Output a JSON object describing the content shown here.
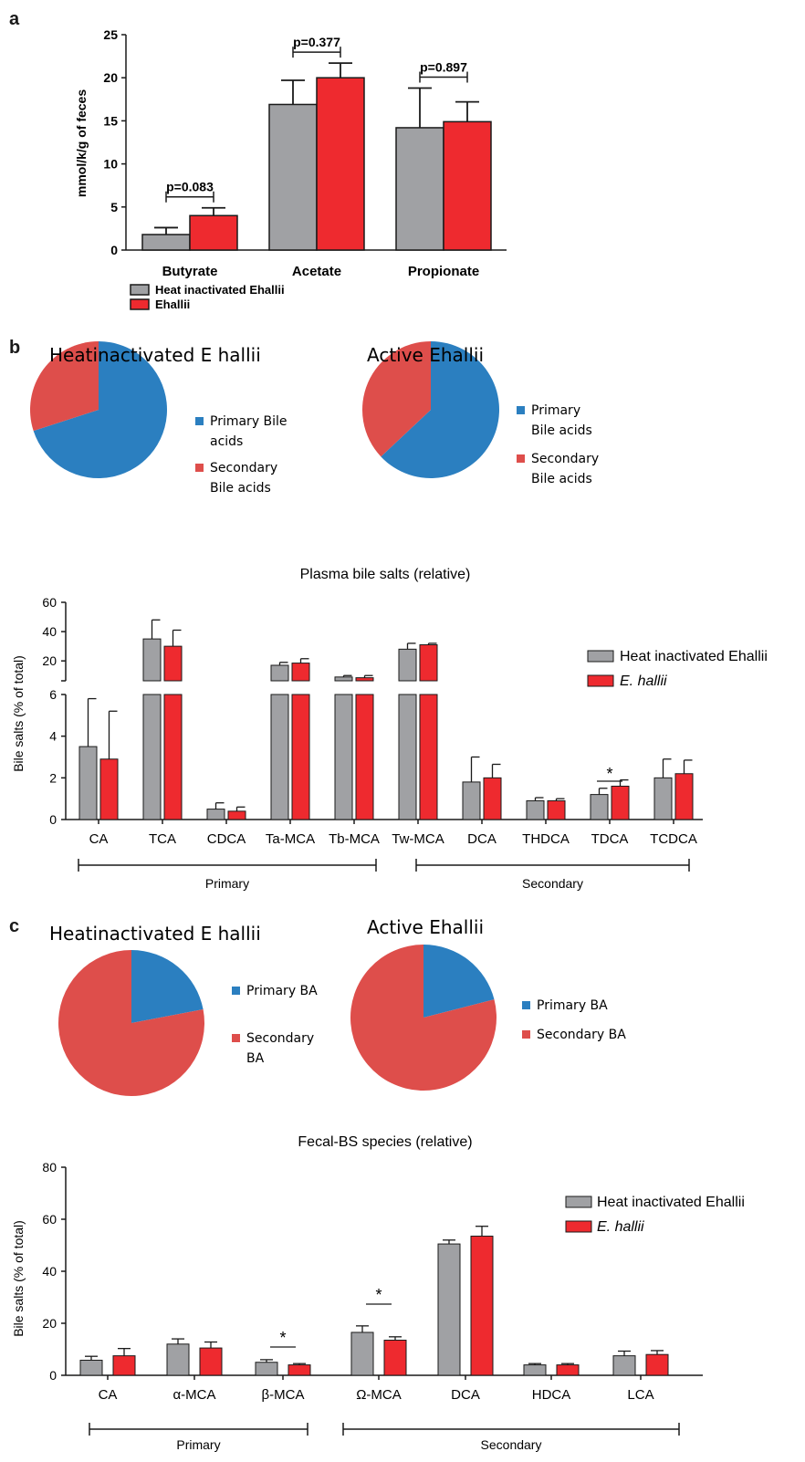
{
  "panels": {
    "a": "a",
    "b": "b",
    "c": "c"
  },
  "colors": {
    "gray": "#a0a1a4",
    "red": "#ee2a2f",
    "blue": "#2b7fc0",
    "pie_red": "#de4e4b",
    "axis": "#1a1a1a"
  },
  "chart_data": [
    {
      "id": "scfa",
      "type": "bar",
      "categories": [
        "Butyrate",
        "Acetate",
        "Propionate"
      ],
      "ylabel": "mmol/k/g of feces",
      "ylim": [
        0,
        25
      ],
      "yticks": [
        0,
        5,
        10,
        15,
        20,
        25
      ],
      "series": [
        {
          "name": "Heat inactivated Ehallii",
          "values": [
            1.8,
            16.9,
            14.2
          ],
          "errors": [
            0.8,
            2.8,
            4.6
          ]
        },
        {
          "name": "Ehallii",
          "values": [
            4.0,
            20.0,
            14.9
          ],
          "errors": [
            0.9,
            1.7,
            2.3
          ]
        }
      ],
      "annotations": [
        "p=0.083",
        "p=0.377",
        "p=0.897"
      ]
    },
    {
      "id": "plasma-pie-heat",
      "type": "pie",
      "title": "Heatinactivated E hallii",
      "labels": [
        [
          "Primary Bile",
          "acids"
        ],
        [
          "Secondary",
          "Bile acids"
        ]
      ],
      "values": [
        70,
        30
      ]
    },
    {
      "id": "plasma-pie-active",
      "type": "pie",
      "title": "Active Ehallii",
      "labels": [
        [
          "Primary",
          "Bile acids"
        ],
        [
          "Secondary",
          "Bile acids"
        ]
      ],
      "values": [
        63,
        37
      ]
    },
    {
      "id": "plasma-bars",
      "type": "bar",
      "title": "Plasma bile salts (relative)",
      "ylabel": "Bile salts (% of total)",
      "categories": [
        "CA",
        "TCA",
        "CDCA",
        "Ta-MCA",
        "Tb-MCA",
        "Tw-MCA",
        "DCA",
        "THDCA",
        "TDCA",
        "TCDCA"
      ],
      "yticks_lower": [
        0,
        2,
        4,
        6
      ],
      "yticks_upper": [
        20,
        40,
        60
      ],
      "series": [
        {
          "name": "Heat inactivated Ehallii",
          "values": [
            3.5,
            35,
            0.5,
            17,
            9,
            28,
            1.8,
            0.9,
            1.2,
            2.0
          ],
          "errors": [
            2.3,
            13,
            0.3,
            2,
            1,
            4,
            1.2,
            0.15,
            0.3,
            0.9
          ]
        },
        {
          "name": "E. hallii",
          "values": [
            2.9,
            30,
            0.4,
            18.5,
            8.5,
            31,
            2.0,
            0.9,
            1.6,
            2.2
          ],
          "errors": [
            2.3,
            11,
            0.2,
            3,
            1.5,
            1,
            0.65,
            0.1,
            0.3,
            0.65
          ]
        }
      ],
      "group_labels": [
        "Primary",
        "Secondary"
      ],
      "significance": [
        "*"
      ]
    },
    {
      "id": "fecal-pie-heat",
      "type": "pie",
      "title": "Heatinactivated E hallii",
      "labels": [
        [
          "Primary BA"
        ],
        [
          "Secondary",
          "BA"
        ]
      ],
      "values": [
        22,
        78
      ]
    },
    {
      "id": "fecal-pie-active",
      "type": "pie",
      "title": "Active Ehallii",
      "labels": [
        [
          "Primary BA"
        ],
        [
          "Secondary BA"
        ]
      ],
      "values": [
        21,
        79
      ]
    },
    {
      "id": "fecal-bars",
      "type": "bar",
      "title": "Fecal-BS species (relative)",
      "ylabel": "Bile salts (% of total)",
      "ylim": [
        0,
        80
      ],
      "yticks": [
        0,
        20,
        40,
        60,
        80
      ],
      "categories": [
        "CA",
        "α-MCA",
        "β-MCA",
        "Ω-MCA",
        "DCA",
        "HDCA",
        "LCA"
      ],
      "series": [
        {
          "name": "Heat inactivated Ehallii",
          "values": [
            5.8,
            12,
            5,
            16.5,
            50.5,
            4,
            7.5
          ],
          "errors": [
            1.5,
            2,
            1,
            2.5,
            1.5,
            0.5,
            1.8
          ]
        },
        {
          "name": "E. hallii",
          "values": [
            7.5,
            10.5,
            4,
            13.5,
            53.5,
            4,
            8
          ],
          "errors": [
            2.8,
            2.3,
            0.5,
            1.3,
            3.8,
            0.5,
            1.5
          ]
        }
      ],
      "group_labels": [
        "Primary",
        "Secondary"
      ],
      "significance": [
        "*",
        "*"
      ]
    }
  ]
}
